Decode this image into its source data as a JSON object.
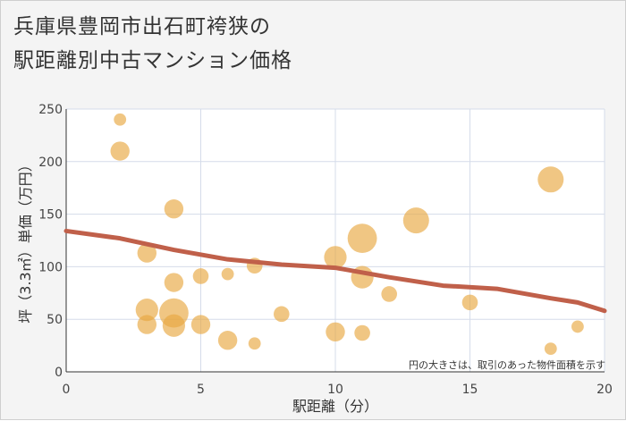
{
  "chart_data": {
    "type": "scatter",
    "title": "兵庫県豊岡市出石町袴狭の駅距離別中古マンション価格",
    "title_lines": [
      "兵庫県豊岡市出石町袴狭の",
      "駅距離別中古マンション価格"
    ],
    "xlabel": "駅距離（分）",
    "ylabel": "坪（3.3㎡）単価（万円）",
    "note": "円の大きさは、取引のあった物件面積を示す",
    "xlim": [
      0,
      20
    ],
    "ylim": [
      0,
      250
    ],
    "xticks": [
      0,
      5,
      10,
      15,
      20
    ],
    "yticks": [
      0,
      50,
      100,
      150,
      200,
      250
    ],
    "colors": {
      "bubble": "#e8a840",
      "trend": "#c0604a",
      "grid": "#d5dcea"
    },
    "points": [
      {
        "x": 2,
        "y": 240,
        "size": 1
      },
      {
        "x": 2,
        "y": 210,
        "size": 3
      },
      {
        "x": 3,
        "y": 113,
        "size": 3
      },
      {
        "x": 3,
        "y": 59,
        "size": 4
      },
      {
        "x": 3,
        "y": 45,
        "size": 3
      },
      {
        "x": 4,
        "y": 155,
        "size": 3
      },
      {
        "x": 4,
        "y": 85,
        "size": 3
      },
      {
        "x": 4,
        "y": 56,
        "size": 6
      },
      {
        "x": 4,
        "y": 44,
        "size": 4
      },
      {
        "x": 5,
        "y": 91,
        "size": 2
      },
      {
        "x": 5,
        "y": 45,
        "size": 3
      },
      {
        "x": 6,
        "y": 93,
        "size": 1
      },
      {
        "x": 6,
        "y": 30,
        "size": 3
      },
      {
        "x": 7,
        "y": 101,
        "size": 2
      },
      {
        "x": 7,
        "y": 27,
        "size": 1
      },
      {
        "x": 8,
        "y": 55,
        "size": 2
      },
      {
        "x": 10,
        "y": 109,
        "size": 4
      },
      {
        "x": 10,
        "y": 38,
        "size": 3
      },
      {
        "x": 11,
        "y": 127,
        "size": 6
      },
      {
        "x": 11,
        "y": 90,
        "size": 4
      },
      {
        "x": 11,
        "y": 37,
        "size": 2
      },
      {
        "x": 12,
        "y": 74,
        "size": 2
      },
      {
        "x": 13,
        "y": 144,
        "size": 5
      },
      {
        "x": 15,
        "y": 66,
        "size": 2
      },
      {
        "x": 18,
        "y": 183,
        "size": 5
      },
      {
        "x": 18,
        "y": 22,
        "size": 1
      },
      {
        "x": 19,
        "y": 43,
        "size": 1
      }
    ],
    "trend": [
      {
        "x": 0,
        "y": 134
      },
      {
        "x": 2,
        "y": 127
      },
      {
        "x": 4,
        "y": 116
      },
      {
        "x": 6,
        "y": 107
      },
      {
        "x": 8,
        "y": 102
      },
      {
        "x": 10,
        "y": 99
      },
      {
        "x": 12,
        "y": 90
      },
      {
        "x": 14,
        "y": 82
      },
      {
        "x": 16,
        "y": 79
      },
      {
        "x": 18,
        "y": 70
      },
      {
        "x": 19,
        "y": 66
      },
      {
        "x": 20,
        "y": 58
      }
    ]
  }
}
